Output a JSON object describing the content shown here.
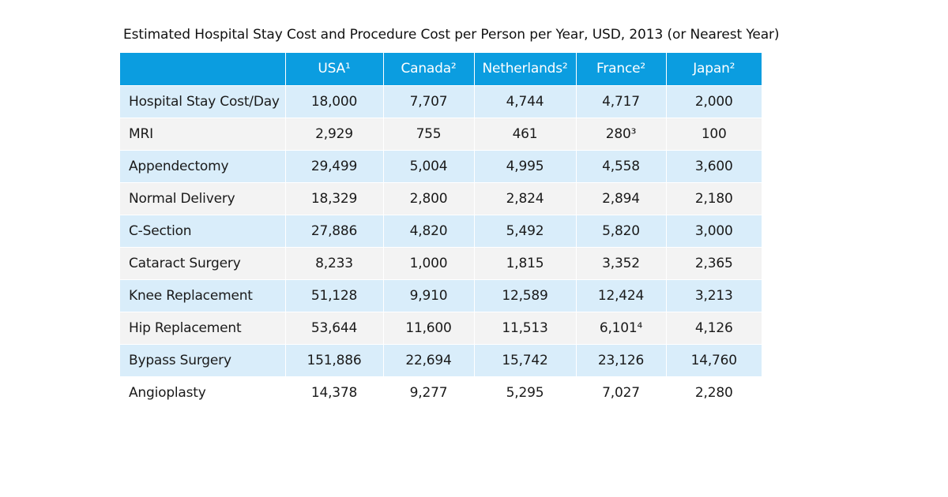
{
  "title": "Estimated Hospital Stay Cost and Procedure Cost per Person per Year, USD, 2013 (or Nearest Year)",
  "colors": {
    "header_bg": "#0b9de0",
    "header_text": "#ffffff",
    "row_band_blue": "#d9edfa",
    "row_band_gray": "#f3f3f3"
  },
  "table": {
    "columns": [
      "",
      "USA¹",
      "Canada²",
      "Netherlands²",
      "France²",
      "Japan²"
    ],
    "rows": [
      {
        "label": "Hospital Stay Cost/Day",
        "values": [
          "18,000",
          "7,707",
          "4,744",
          "4,717",
          "2,000"
        ]
      },
      {
        "label": "MRI",
        "values": [
          "2,929",
          "755",
          "461",
          "280³",
          "100"
        ]
      },
      {
        "label": "Appendectomy",
        "values": [
          "29,499",
          "5,004",
          "4,995",
          "4,558",
          "3,600"
        ]
      },
      {
        "label": "Normal Delivery",
        "values": [
          "18,329",
          "2,800",
          "2,824",
          "2,894",
          "2,180"
        ]
      },
      {
        "label": "C-Section",
        "values": [
          "27,886",
          "4,820",
          "5,492",
          "5,820",
          "3,000"
        ]
      },
      {
        "label": "Cataract Surgery",
        "values": [
          "8,233",
          "1,000",
          "1,815",
          "3,352",
          "2,365"
        ]
      },
      {
        "label": "Knee Replacement",
        "values": [
          "51,128",
          "9,910",
          "12,589",
          "12,424",
          "3,213"
        ]
      },
      {
        "label": "Hip Replacement",
        "values": [
          "53,644",
          "11,600",
          "11,513",
          "6,101⁴",
          "4,126"
        ]
      },
      {
        "label": "Bypass Surgery",
        "values": [
          "151,886",
          "22,694",
          "15,742",
          "23,126",
          "14,760"
        ]
      },
      {
        "label": "Angioplasty",
        "values": [
          "14,378",
          "9,277",
          "5,295",
          "7,027",
          "2,280"
        ]
      }
    ]
  }
}
